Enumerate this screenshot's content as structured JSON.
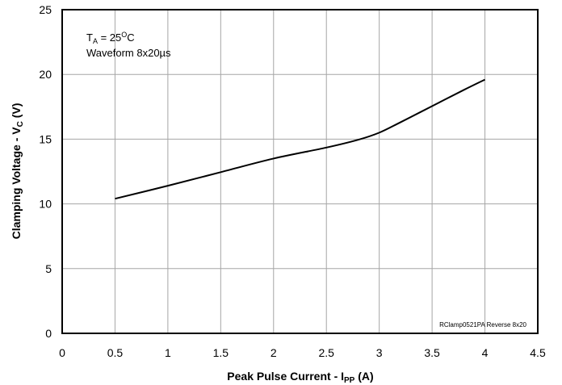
{
  "chart_data": {
    "type": "line",
    "xlabel": {
      "main": "Peak Pulse Current - I",
      "sub": "PP",
      "unit": " (A)"
    },
    "ylabel": {
      "main": "Clamping Voltage - V",
      "sub": "C",
      "unit": " (V)"
    },
    "xlim": [
      0,
      4.5
    ],
    "ylim": [
      0,
      25
    ],
    "x_ticks": [
      "0",
      "0.5",
      "1",
      "1.5",
      "2",
      "2.5",
      "3",
      "3.5",
      "4",
      "4.5"
    ],
    "y_ticks": [
      "0",
      "5",
      "10",
      "15",
      "20",
      "25"
    ],
    "grid": true,
    "series": [
      {
        "x": [
          0.5,
          1.0,
          1.5,
          2.0,
          2.5,
          2.8,
          3.0,
          3.2,
          3.5,
          3.8,
          4.0
        ],
        "y": [
          10.4,
          11.4,
          12.45,
          13.5,
          14.35,
          14.95,
          15.5,
          16.3,
          17.55,
          18.8,
          19.6
        ],
        "color": "#000000"
      }
    ],
    "annotations": {
      "condition_temp": {
        "main": "T",
        "sub": "A",
        "value": " = 25",
        "sup": "O",
        "unit": "C"
      },
      "condition_waveform": "Waveform 8x20µs",
      "footer_label": "RClamp0521PA Reverse 8x20"
    }
  }
}
